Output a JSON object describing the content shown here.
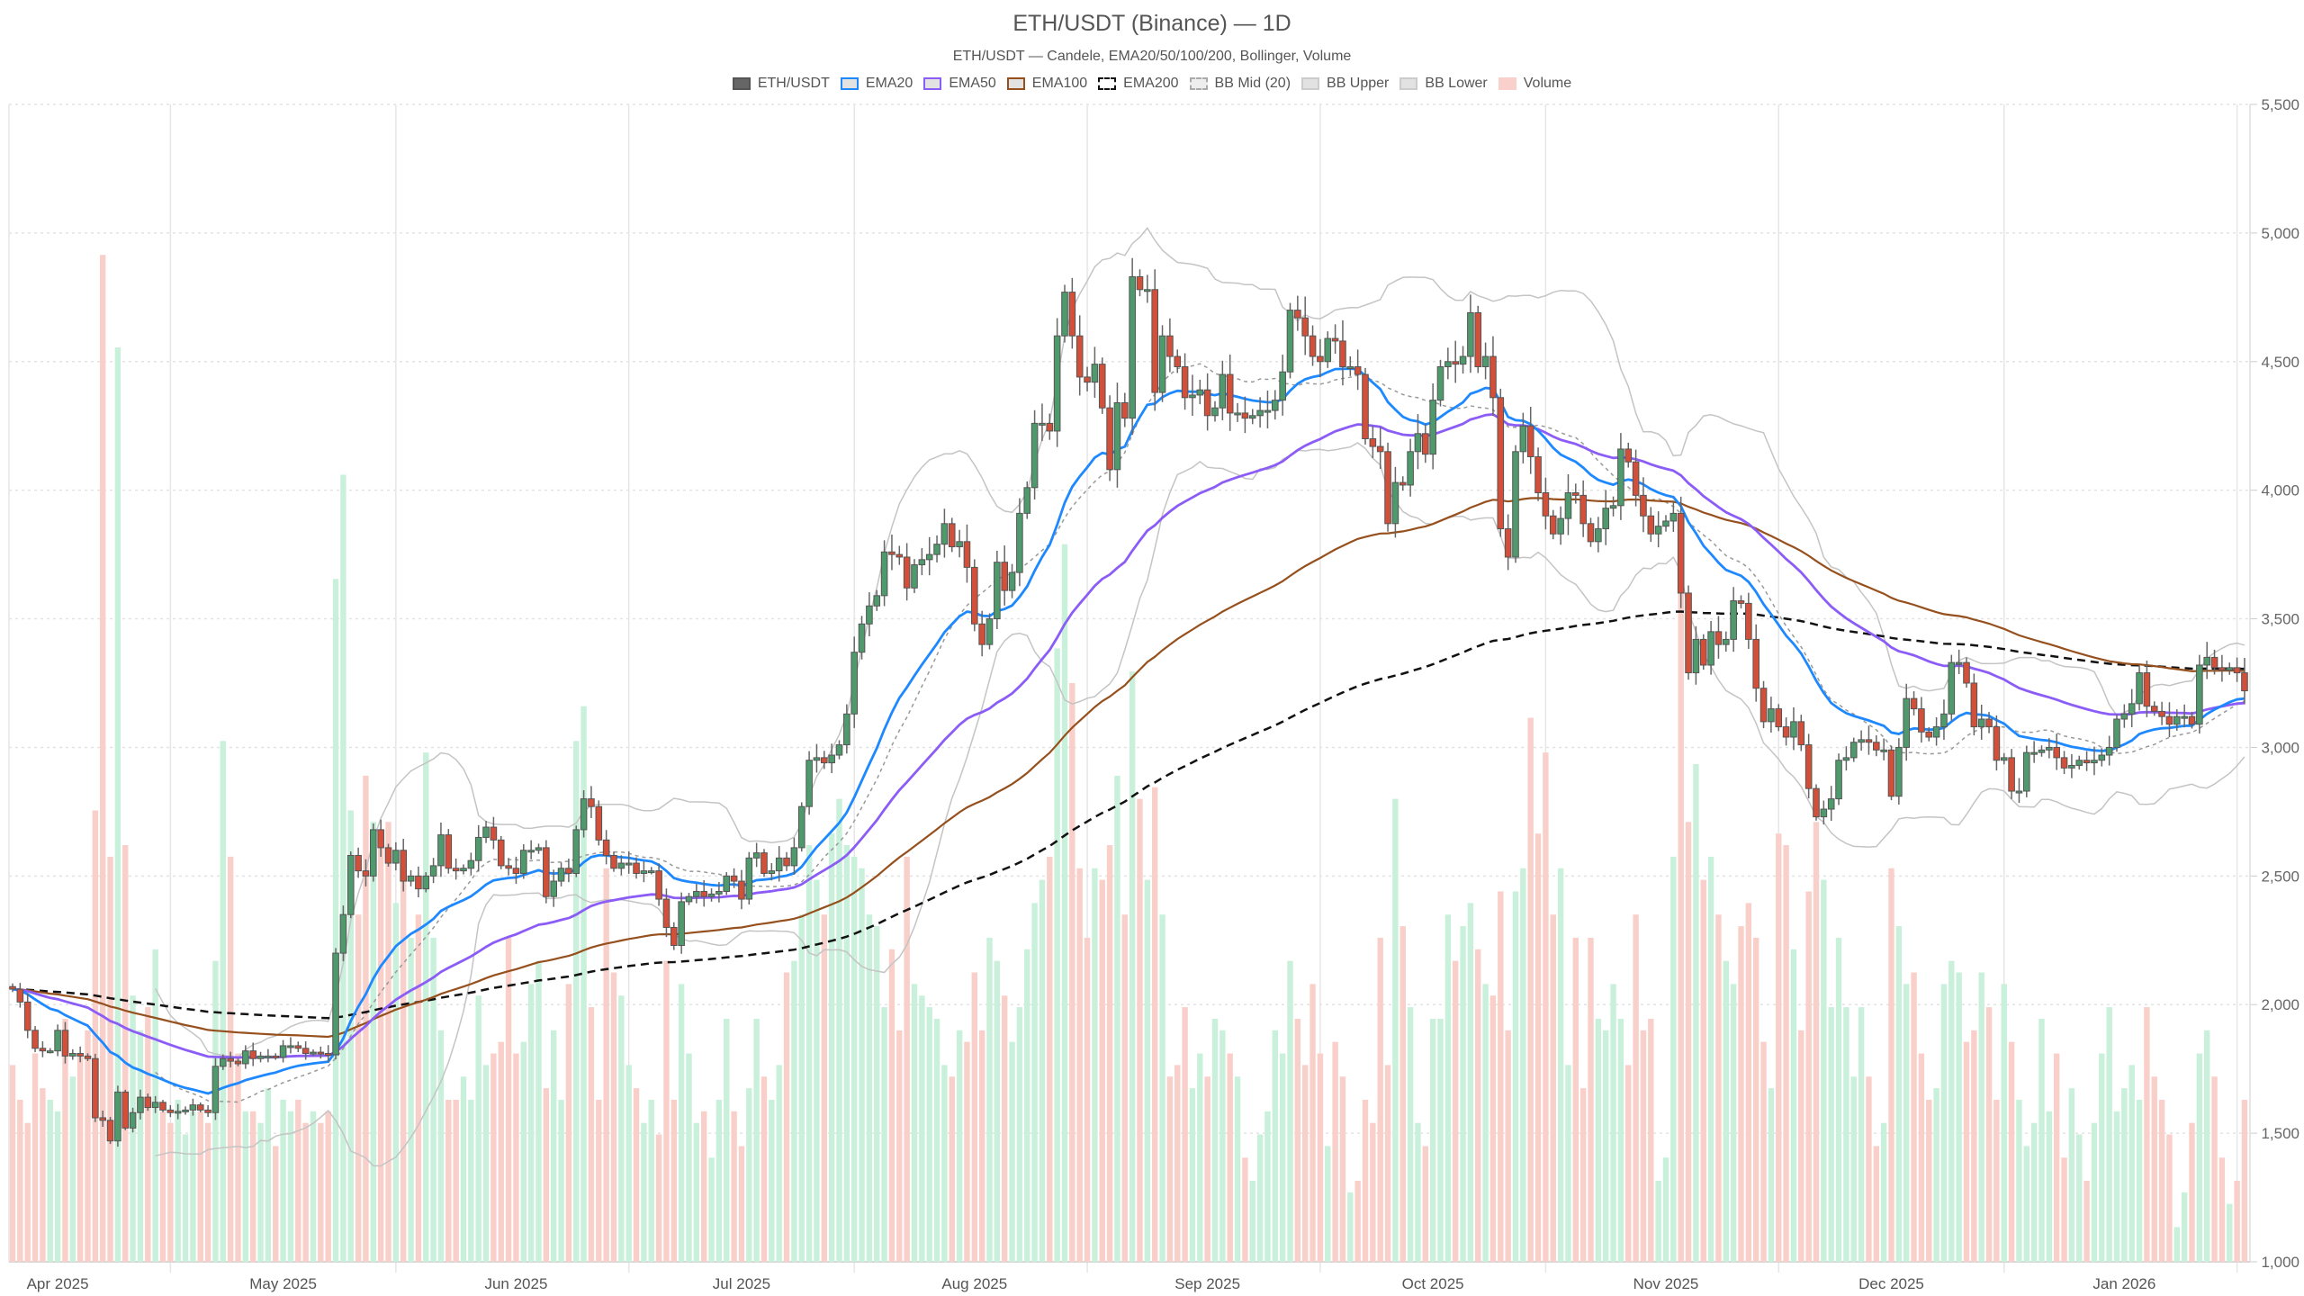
{
  "chart_data": {
    "type": "candlestick",
    "title": "ETH/USDT (Binance) — 1D",
    "subtitle": "ETH/USDT — Candele, EMA20/50/100/200, Bollinger, Volume",
    "start_date": "2025-03-26",
    "ylim": [
      1000,
      5500
    ],
    "yticks": [
      "1,000",
      "1,500",
      "2,000",
      "2,500",
      "3,000",
      "3,500",
      "4,000",
      "4,500",
      "5,000",
      "5,500"
    ],
    "ytick_values": [
      1000,
      1500,
      2000,
      2500,
      3000,
      3500,
      4000,
      4500,
      5000,
      5500
    ],
    "xticks": [
      "Apr 2025",
      "May 2025",
      "Jun 2025",
      "Jul 2025",
      "Aug 2025",
      "Sep 2025",
      "Oct 2025",
      "Nov 2025",
      "Dec 2025",
      "Jan 2026"
    ],
    "xtick_dates": [
      "2025-04-01",
      "2025-05-01",
      "2025-06-01",
      "2025-07-01",
      "2025-08-01",
      "2025-09-01",
      "2025-10-01",
      "2025-11-01",
      "2025-12-01",
      "2026-01-01"
    ],
    "first_open": 2070,
    "close": [
      2060,
      2010,
      1900,
      1830,
      1820,
      1820,
      1900,
      1800,
      1810,
      1800,
      1790,
      1560,
      1550,
      1470,
      1660,
      1520,
      1580,
      1640,
      1600,
      1620,
      1590,
      1580,
      1585,
      1590,
      1610,
      1590,
      1580,
      1760,
      1790,
      1780,
      1770,
      1820,
      1790,
      1800,
      1800,
      1795,
      1840,
      1840,
      1830,
      1810,
      1815,
      1810,
      1805,
      2200,
      2350,
      2580,
      2520,
      2500,
      2680,
      2610,
      2550,
      2600,
      2480,
      2500,
      2450,
      2500,
      2540,
      2660,
      2530,
      2520,
      2530,
      2560,
      2650,
      2690,
      2640,
      2540,
      2530,
      2510,
      2600,
      2600,
      2610,
      2420,
      2480,
      2530,
      2510,
      2680,
      2800,
      2770,
      2640,
      2580,
      2530,
      2550,
      2550,
      2510,
      2520,
      2520,
      2410,
      2300,
      2230,
      2400,
      2420,
      2440,
      2420,
      2430,
      2440,
      2500,
      2480,
      2410,
      2570,
      2590,
      2510,
      2520,
      2570,
      2540,
      2610,
      2770,
      2950,
      2960,
      2940,
      2970,
      3010,
      3130,
      3370,
      3480,
      3550,
      3590,
      3760,
      3750,
      3740,
      3620,
      3710,
      3730,
      3750,
      3790,
      3870,
      3780,
      3800,
      3700,
      3480,
      3400,
      3500,
      3720,
      3610,
      3680,
      3910,
      4010,
      4260,
      4260,
      4230,
      4600,
      4770,
      4600,
      4440,
      4420,
      4490,
      4320,
      4080,
      4340,
      4280,
      4830,
      4780,
      4780,
      4380,
      4600,
      4520,
      4480,
      4360,
      4370,
      4390,
      4290,
      4320,
      4450,
      4300,
      4300,
      4280,
      4290,
      4310,
      4310,
      4350,
      4460,
      4700,
      4670,
      4600,
      4520,
      4500,
      4590,
      4580,
      4480,
      4480,
      4450,
      4200,
      4170,
      4150,
      3870,
      4030,
      4020,
      4150,
      4220,
      4140,
      4350,
      4480,
      4500,
      4490,
      4520,
      4690,
      4480,
      4520,
      4360,
      3850,
      3740,
      4150,
      4250,
      4130,
      3990,
      3900,
      3830,
      3890,
      3990,
      3980,
      3870,
      3800,
      3850,
      3930,
      3940,
      4160,
      4110,
      3980,
      3900,
      3830,
      3860,
      3880,
      3910,
      3600,
      3290,
      3420,
      3320,
      3450,
      3400,
      3420,
      3570,
      3560,
      3420,
      3230,
      3100,
      3150,
      3080,
      3040,
      3100,
      3010,
      2840,
      2730,
      2760,
      2800,
      2950,
      2960,
      3020,
      3030,
      3020,
      2990,
      2990,
      2810,
      3000,
      3190,
      3150,
      3060,
      3040,
      3080,
      3130,
      3330,
      3330,
      3250,
      3080,
      3110,
      3080,
      2950,
      2960,
      2830,
      2830,
      2980,
      2980,
      2990,
      3000,
      2960,
      2920,
      2930,
      2950,
      2940,
      2950,
      2970,
      3000,
      3110,
      3130,
      3170,
      3290,
      3160,
      3140,
      3120,
      3090,
      3120,
      3120,
      3090,
      3320,
      3350,
      3310,
      3300,
      3310,
      3290,
      3220
    ],
    "volume_relative_pct": [
      17,
      14,
      12,
      18,
      15,
      14,
      13,
      21,
      16,
      18,
      20,
      39,
      87,
      35,
      79,
      36,
      23,
      20,
      22,
      27,
      13,
      12,
      14,
      11,
      13,
      13,
      12,
      26,
      45,
      35,
      18,
      13,
      13,
      12,
      15,
      10,
      14,
      13,
      14,
      12,
      13,
      12,
      13,
      59,
      68,
      39,
      30,
      42,
      38,
      36,
      38,
      31,
      35,
      28,
      30,
      44,
      28,
      20,
      14,
      14,
      16,
      14,
      23,
      17,
      18,
      19,
      28,
      18,
      19,
      24,
      26,
      15,
      20,
      14,
      24,
      45,
      48,
      22,
      14,
      34,
      25,
      23,
      17,
      15,
      12,
      14,
      11,
      26,
      14,
      24,
      18,
      12,
      13,
      9,
      14,
      21,
      13,
      10,
      15,
      21,
      16,
      14,
      17,
      25,
      26,
      30,
      36,
      33,
      30,
      37,
      40,
      36,
      35,
      34,
      30,
      29,
      22,
      27,
      20,
      35,
      24,
      23,
      22,
      21,
      17,
      16,
      20,
      19,
      25,
      20,
      28,
      26,
      23,
      19,
      22,
      27,
      31,
      33,
      35,
      53,
      62,
      50,
      34,
      28,
      34,
      33,
      36,
      42,
      30,
      51,
      40,
      33,
      41,
      30,
      16,
      17,
      22,
      15,
      18,
      16,
      21,
      20,
      18,
      16,
      9,
      7,
      11,
      13,
      20,
      18,
      26,
      21,
      17,
      24,
      18,
      10,
      19,
      16,
      6,
      7,
      14,
      12,
      28,
      17,
      40,
      29,
      22,
      12,
      10,
      21,
      21,
      30,
      26,
      29,
      31,
      27,
      24,
      23,
      32,
      20,
      32,
      34,
      47,
      37,
      44,
      30,
      34,
      17,
      28,
      15,
      28,
      21,
      20,
      24,
      21,
      17,
      30,
      20,
      21,
      7,
      9,
      35,
      60,
      38,
      43,
      33,
      35,
      30,
      26,
      24,
      29,
      31,
      28,
      19,
      15,
      37,
      36,
      27,
      20,
      32,
      38,
      33,
      22,
      28,
      22,
      16,
      22,
      16,
      10,
      12,
      34,
      29,
      24,
      25,
      18,
      14,
      15,
      24,
      26,
      25,
      19,
      20,
      25,
      22,
      14,
      24,
      19,
      14,
      10,
      12,
      21,
      13,
      18,
      9,
      15,
      11,
      7,
      12,
      18,
      22,
      13,
      15,
      17,
      14,
      22,
      16,
      14,
      11,
      3,
      6,
      12,
      18,
      20,
      16,
      9,
      5,
      7,
      14
    ],
    "legend": [
      {
        "label": "ETH/USDT",
        "fill": "#666666",
        "border": "#555555",
        "style": "solid"
      },
      {
        "label": "EMA20",
        "fill": "#e2e2e2",
        "border": "#1e88ff",
        "style": "solid"
      },
      {
        "label": "EMA50",
        "fill": "#e2e2e2",
        "border": "#8b5cf6",
        "style": "solid"
      },
      {
        "label": "EMA100",
        "fill": "#e2e2e2",
        "border": "#96501e",
        "style": "solid"
      },
      {
        "label": "EMA200",
        "fill": "#ffffff",
        "border": "#111111",
        "style": "dashed"
      },
      {
        "label": "BB Mid (20)",
        "fill": "#eeeeee",
        "border": "#aaaaaa",
        "style": "dashed"
      },
      {
        "label": "BB Upper",
        "fill": "#e2e2e2",
        "border": "#cccccc",
        "style": "solid"
      },
      {
        "label": "BB Lower",
        "fill": "#e2e2e2",
        "border": "#cccccc",
        "style": "solid"
      },
      {
        "label": "Volume",
        "fill": "#f9d0cb",
        "border": "#f9d0cb",
        "style": "solid"
      }
    ],
    "colors": {
      "up": "#4f9a6c",
      "down": "#d2503a",
      "vol_up": "#c9f0da",
      "vol_down": "#f9cfca",
      "ema20": "#1e88ff",
      "ema50": "#8b5cf6",
      "ema100": "#96501e",
      "ema200": "#111111",
      "bb": "#c4c4c4",
      "bb_mid": "#999999"
    },
    "grid": true
  }
}
